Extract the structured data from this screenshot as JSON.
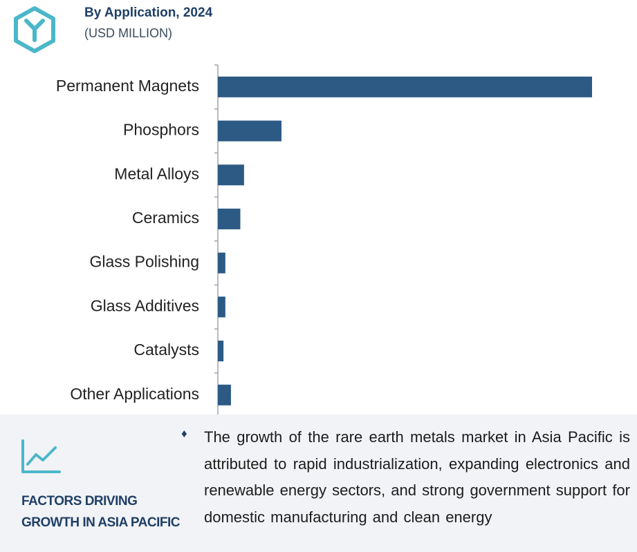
{
  "header": {
    "title": "By Application, 2024",
    "subtitle": "(USD MILLION)",
    "logo_icon": "hexagon-y-logo-icon",
    "accent_color": "#4bb7c9"
  },
  "chart_data": {
    "type": "bar",
    "orientation": "horizontal",
    "title": "By Application, 2024",
    "subtitle": "(USD MILLION)",
    "categories": [
      "Permanent Magnets",
      "Phosphors",
      "Metal Alloys",
      "Ceramics",
      "Glass Polishing",
      "Glass Additives",
      "Catalysts",
      "Other Applications"
    ],
    "values": [
      100,
      17,
      7,
      6,
      2,
      2,
      1.5,
      3.5
    ],
    "value_scale": "relative (no axis ticks shown)",
    "xlabel": "",
    "ylabel": "",
    "grid": false,
    "bar_color": "#2c5a85"
  },
  "footer": {
    "icon": "trend-line-chart-icon",
    "heading": "FACTORS DRIVING GROWTH IN ASIA PACIFIC",
    "bullet_symbol": "♦",
    "text": "The growth of the rare earth metals market in Asia Pacific is attributed to rapid industrialization, expanding electronics and renewable energy sectors, and strong government support for domestic manufacturing and clean energy"
  }
}
